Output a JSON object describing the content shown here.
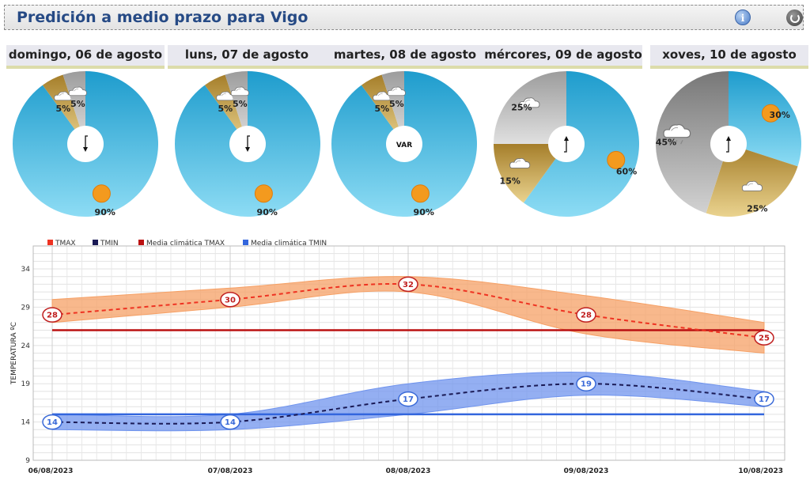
{
  "header": {
    "title": "Predición a medio prazo para Vigo",
    "info_icon": "info-icon",
    "refresh_icon": "refresh-icon"
  },
  "days": [
    {
      "label": "domingo, 06 de agosto",
      "wind": "arrow-down",
      "segments": [
        {
          "cond": "sunny",
          "pct": 90,
          "label": "90%"
        },
        {
          "cond": "partly-cloudy",
          "pct": 5,
          "label": "5%"
        },
        {
          "cond": "cloudy",
          "pct": 5,
          "label": "5%"
        }
      ]
    },
    {
      "label": "luns, 07 de agosto",
      "wind": "arrow-down",
      "segments": [
        {
          "cond": "sunny",
          "pct": 90,
          "label": "90%"
        },
        {
          "cond": "partly-cloudy",
          "pct": 5,
          "label": "5%"
        },
        {
          "cond": "cloudy",
          "pct": 5,
          "label": "5%"
        }
      ]
    },
    {
      "label": "martes, 08 de agosto",
      "wind": "VAR",
      "segments": [
        {
          "cond": "sunny",
          "pct": 90,
          "label": "90%"
        },
        {
          "cond": "partly-cloudy",
          "pct": 5,
          "label": "5%"
        },
        {
          "cond": "cloudy",
          "pct": 5,
          "label": "5%"
        }
      ]
    },
    {
      "label": "mércores, 09 de agosto",
      "wind": "arrow-up",
      "segments": [
        {
          "cond": "sunny",
          "pct": 60,
          "label": "60%"
        },
        {
          "cond": "partly-cloudy",
          "pct": 15,
          "label": "15%"
        },
        {
          "cond": "cloudy",
          "pct": 25,
          "label": "25%"
        }
      ]
    },
    {
      "label": "xoves, 10 de agosto",
      "wind": "arrow-up",
      "segments": [
        {
          "cond": "sunny",
          "pct": 30,
          "label": "30%"
        },
        {
          "cond": "partly-cloudy",
          "pct": 25,
          "label": "25%"
        },
        {
          "cond": "cloudy-rain",
          "pct": 45,
          "label": "45%"
        }
      ]
    }
  ],
  "colors": {
    "sunny": "#45c0e6",
    "partly-cloudy": "#b8974a",
    "cloudy": "#b5b5b5",
    "cloudy-rain": "#9a9a9a",
    "tmax": "#ee3322",
    "tmin": "#1a1a55",
    "clim_tmax": "#bb1111",
    "clim_tmin": "#3366dd",
    "tmax_band": "#f6a065",
    "tmin_band": "#7094ee"
  },
  "chart_data": {
    "type": "line",
    "categories": [
      "06/08/2023",
      "07/08/2023",
      "08/08/2023",
      "09/08/2023",
      "10/08/2023"
    ],
    "ylabel": "TEMPERATURA ºC",
    "ylim": [
      9,
      37
    ],
    "yticks": [
      9,
      14,
      19,
      24,
      29,
      34
    ],
    "grid": true,
    "legend_position": "top-left",
    "legend": [
      "TMAX",
      "TMIN",
      "Media climática TMAX",
      "Media climática TMIN"
    ],
    "series": [
      {
        "name": "TMAX",
        "values": [
          28,
          30,
          32,
          28,
          25
        ],
        "labels": [
          "28",
          "30",
          "32",
          "28",
          "25"
        ],
        "band_low": [
          27,
          29,
          31,
          25.5,
          23
        ],
        "band_high": [
          30,
          31.5,
          33,
          30.5,
          27
        ]
      },
      {
        "name": "TMIN",
        "values": [
          14,
          14,
          17,
          19,
          17
        ],
        "labels": [
          "14",
          "14",
          "17",
          "19",
          "17"
        ],
        "band_low": [
          13,
          13,
          15,
          17.5,
          16
        ],
        "band_high": [
          15,
          15,
          19,
          20.5,
          18
        ]
      },
      {
        "name": "Media climática TMAX",
        "values": [
          26,
          26,
          26,
          26,
          26
        ]
      },
      {
        "name": "Media climática TMIN",
        "values": [
          15,
          15,
          15,
          15,
          15
        ]
      }
    ]
  }
}
